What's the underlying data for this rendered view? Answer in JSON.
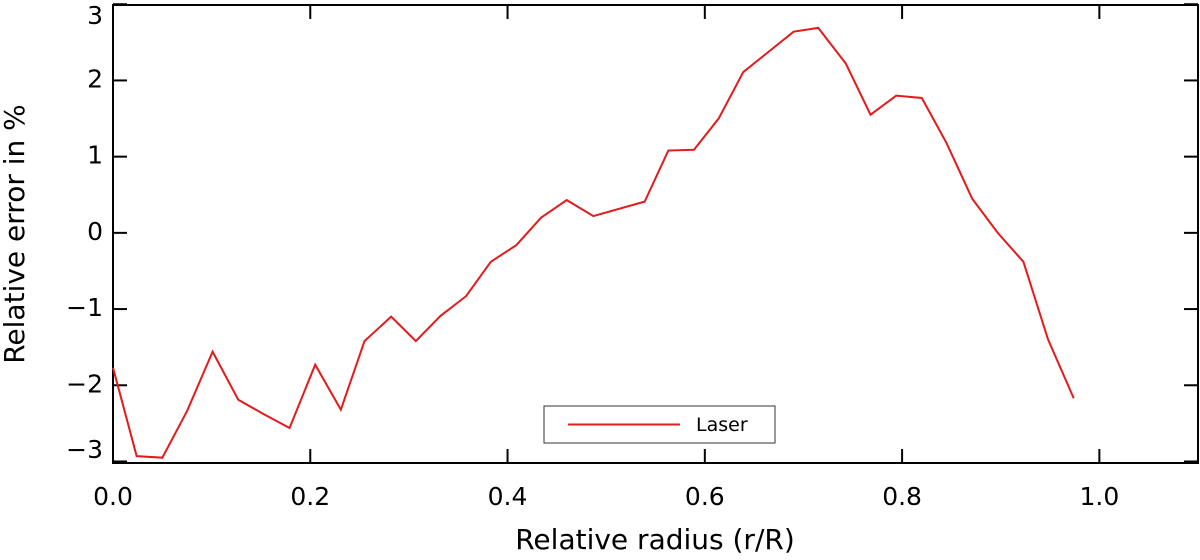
{
  "chart_data": {
    "type": "line",
    "xlabel": "Relative radius (r/R)",
    "ylabel": "Relative error in %",
    "xlim": [
      0,
      1.1
    ],
    "ylim": [
      -3.02,
      2.99
    ],
    "xticks": [
      {
        "value": 0,
        "label": "0.0"
      },
      0.2,
      0.4,
      0.6,
      0.8,
      {
        "value": 1,
        "label": "1.0"
      }
    ],
    "yticks": [
      {
        "value": -3,
        "label": "−3"
      },
      {
        "value": -2,
        "label": "−2"
      },
      {
        "value": -1,
        "label": "−1"
      },
      0,
      1,
      2,
      3
    ],
    "legend": "bottom",
    "series": [
      {
        "name": "Laser",
        "color": "#e41a1c",
        "x": [
          0.0,
          0.024,
          0.05,
          0.075,
          0.101,
          0.127,
          0.153,
          0.179,
          0.205,
          0.231,
          0.255,
          0.282,
          0.307,
          0.332,
          0.358,
          0.383,
          0.409,
          0.434,
          0.46,
          0.487,
          0.539,
          0.563,
          0.589,
          0.614,
          0.639,
          0.665,
          0.69,
          0.715,
          0.743,
          0.768,
          0.794,
          0.82,
          0.845,
          0.871,
          0.897,
          0.923,
          0.948,
          0.974
        ],
        "values": [
          -1.77,
          -2.93,
          -2.95,
          -2.34,
          -1.56,
          -2.19,
          -2.38,
          -2.56,
          -1.73,
          -2.32,
          -1.42,
          -1.1,
          -1.42,
          -1.09,
          -0.83,
          -0.38,
          -0.16,
          0.2,
          0.43,
          0.22,
          0.41,
          1.08,
          1.09,
          1.5,
          2.11,
          2.38,
          2.64,
          2.69,
          2.22,
          1.55,
          1.8,
          1.77,
          1.18,
          0.45,
          0.0,
          -0.38,
          -1.4,
          -2.17
        ]
      }
    ]
  }
}
